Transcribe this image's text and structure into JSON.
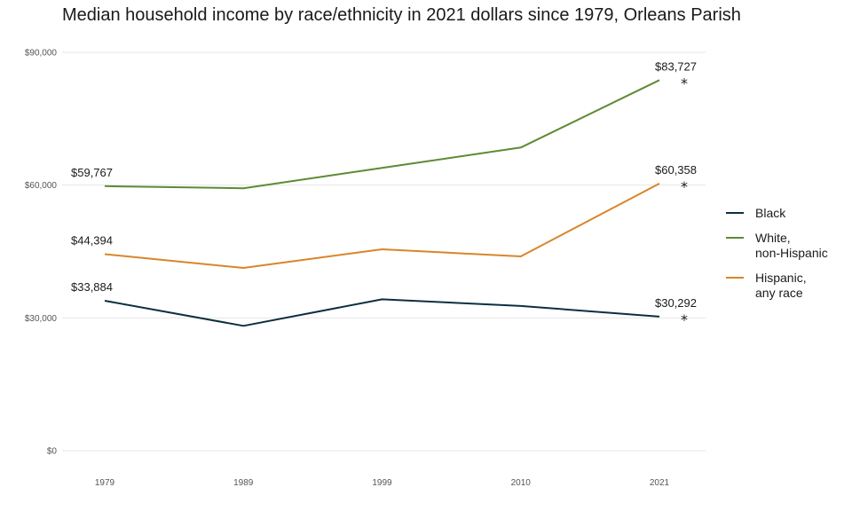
{
  "chart_data": {
    "type": "line",
    "title": "Median household income by race/ethnicity in 2021 dollars since 1979, Orleans Parish",
    "xlabel": "",
    "ylabel": "",
    "categories": [
      "1979",
      "1989",
      "1999",
      "2010",
      "2021"
    ],
    "ylim": [
      0,
      90000
    ],
    "y_ticks": [
      0,
      30000,
      60000,
      90000
    ],
    "y_tick_labels": [
      "$0",
      "$30,000",
      "$60,000",
      "$90,000"
    ],
    "grid": "horizontal",
    "legend_position": "right",
    "series": [
      {
        "name": "Black",
        "color": "#0d2f40",
        "values": [
          33884,
          28200,
          34200,
          32700,
          30292
        ],
        "labels": {
          "first": "$33,884",
          "last": "$30,292"
        },
        "last_marker": "*"
      },
      {
        "name": "White, non-Hispanic",
        "color": "#5e8a35",
        "values": [
          59767,
          59300,
          63900,
          68500,
          83727
        ],
        "labels": {
          "first": "$59,767",
          "last": "$83,727"
        },
        "last_marker": "*"
      },
      {
        "name": "Hispanic, any race",
        "color": "#d9852b",
        "values": [
          44394,
          41300,
          45500,
          43900,
          60358
        ],
        "labels": {
          "first": "$44,394",
          "last": "$60,358"
        },
        "last_marker": "*"
      }
    ],
    "legend": [
      {
        "series": 0,
        "lines": [
          "Black"
        ]
      },
      {
        "series": 1,
        "lines": [
          "White,",
          "non-Hispanic"
        ]
      },
      {
        "series": 2,
        "lines": [
          "Hispanic,",
          "any race"
        ]
      }
    ]
  }
}
